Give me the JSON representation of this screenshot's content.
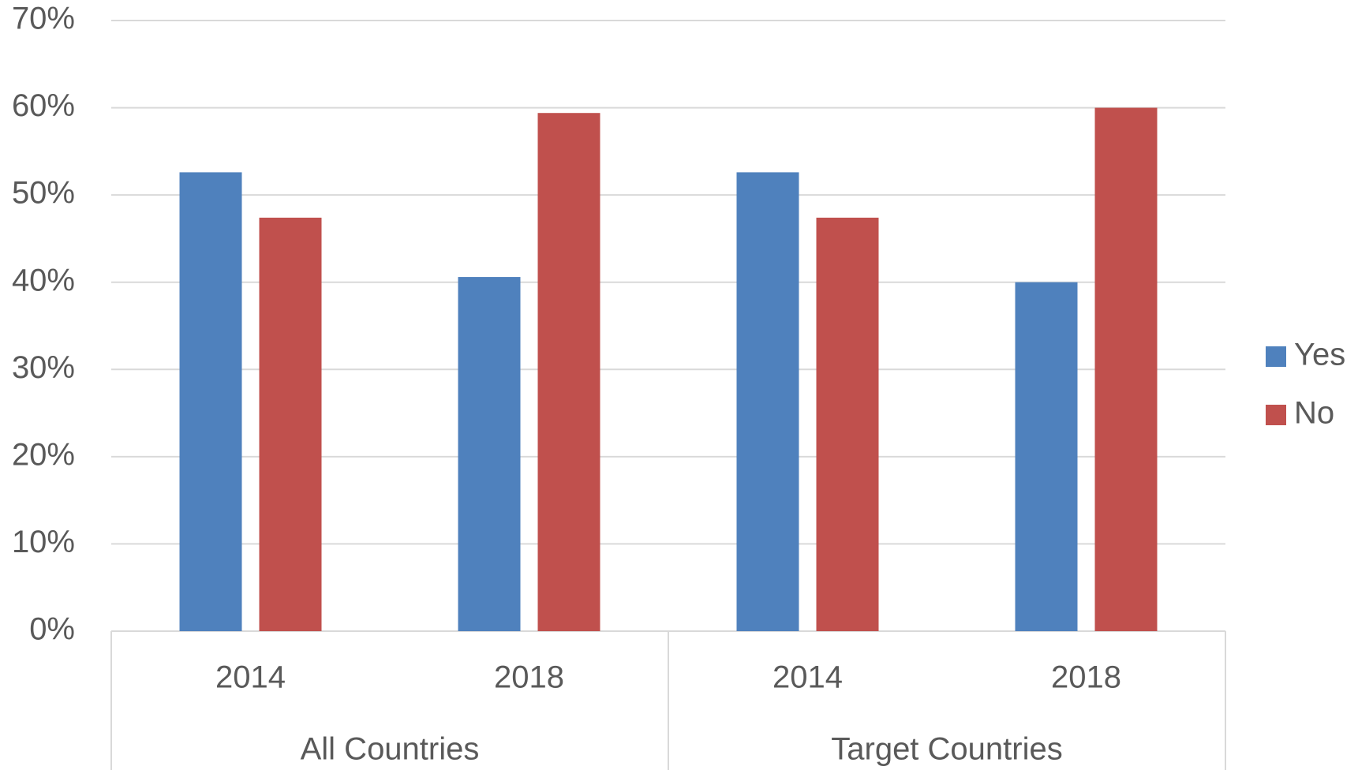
{
  "chart_data": {
    "type": "bar",
    "categories": [
      "2014",
      "2018",
      "2014",
      "2018"
    ],
    "groups": [
      "All Countries",
      "Target Countries"
    ],
    "series": [
      {
        "name": "Yes",
        "color": "#4f81bd",
        "values": [
          52.6,
          40.6,
          52.6,
          40
        ]
      },
      {
        "name": "No",
        "color": "#c0504d",
        "values": [
          47.4,
          59.4,
          47.4,
          60
        ]
      }
    ],
    "ylim": [
      0,
      70
    ],
    "yticks": [
      {
        "value": 0,
        "label": "0%"
      },
      {
        "value": 10,
        "label": "10%"
      },
      {
        "value": 20,
        "label": "20%"
      },
      {
        "value": 30,
        "label": "30%"
      },
      {
        "value": 40,
        "label": "40%"
      },
      {
        "value": 50,
        "label": "50%"
      },
      {
        "value": 60,
        "label": "60%"
      },
      {
        "value": 70,
        "label": "70%"
      }
    ],
    "grid": true,
    "legend": "right"
  }
}
